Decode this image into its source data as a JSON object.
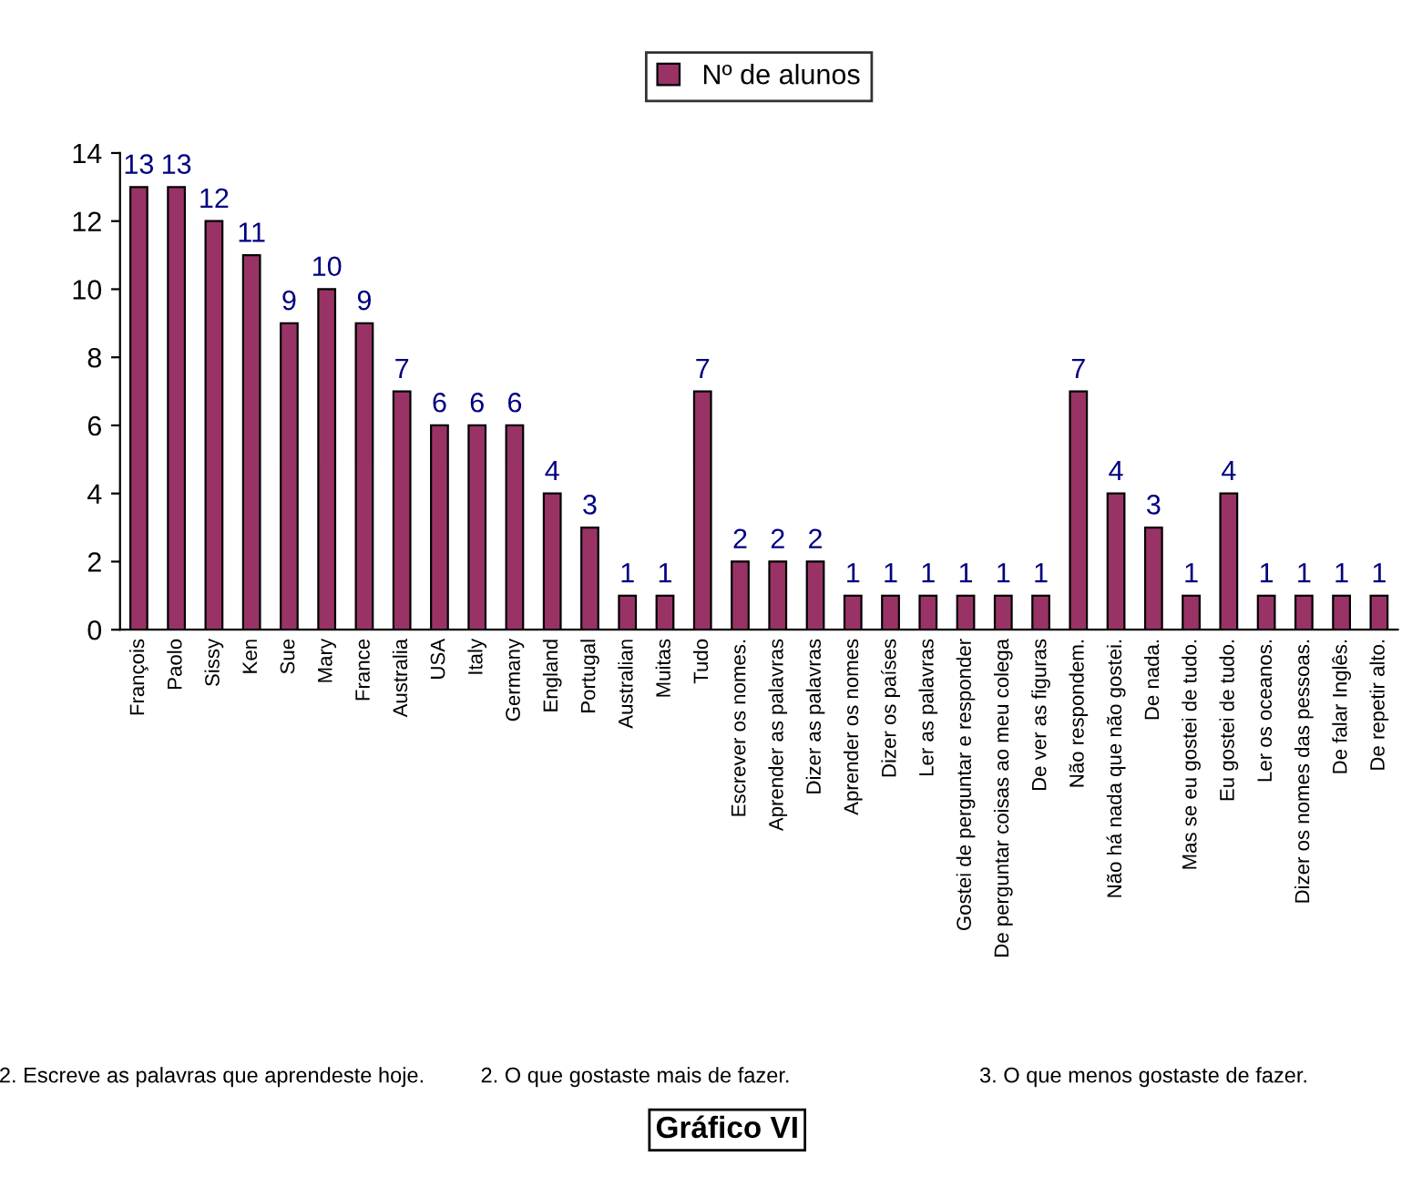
{
  "chart_data": {
    "type": "bar",
    "title": "Gráfico VI",
    "categories": [
      "François",
      "Paolo",
      "Sissy",
      "Ken",
      "Sue",
      "Mary",
      "France",
      "Australia",
      "USA",
      "Italy",
      "Germany",
      "England",
      "Portugal",
      "Australian",
      "Muitas",
      "Tudo",
      "Escrever os nomes.",
      "Aprender as palavras",
      "Dizer as palavras",
      "Aprender os nomes",
      "Dizer os países",
      "Ler as palavras",
      "Gostei de perguntar e responder",
      "De perguntar coisas ao meu colega",
      "De ver as figuras",
      "Não respondem.",
      "Não há nada que não gostei.",
      "De nada.",
      "Mas se eu gostei de tudo.",
      "Eu gostei de tudo.",
      "Ler os oceanos.",
      "Dizer os nomes das pessoas.",
      "De falar Inglês.",
      "De repetir alto."
    ],
    "series": [
      {
        "name": "Nº de alunos",
        "color": "#993366",
        "values": [
          13,
          13,
          12,
          11,
          9,
          10,
          9,
          7,
          6,
          6,
          6,
          4,
          3,
          1,
          1,
          7,
          2,
          2,
          2,
          1,
          1,
          1,
          1,
          1,
          1,
          7,
          4,
          3,
          1,
          4,
          1,
          1,
          1,
          1
        ]
      }
    ],
    "ylim": [
      0,
      14
    ],
    "yticks": [
      0,
      2,
      4,
      6,
      8,
      10,
      12,
      14
    ],
    "data_labels": true,
    "legend": "top",
    "grid": false,
    "annotations": [
      "2. Escreve as palavras que aprendeste hoje.",
      "2. O que gostaste mais de fazer.",
      "3. O que menos gostaste de fazer."
    ]
  }
}
